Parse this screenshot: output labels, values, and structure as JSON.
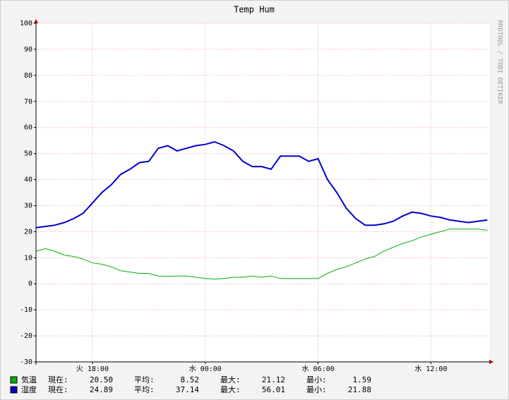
{
  "chart_data": {
    "type": "line",
    "title": "Temp Hum",
    "side_text": "RRDTOOL / TOBI OETIKER",
    "x": [
      15,
      15.5,
      16,
      16.5,
      17,
      17.5,
      18,
      18.5,
      19,
      19.5,
      20,
      20.5,
      21,
      21.5,
      22,
      22.5,
      23,
      23.5,
      24,
      24.5,
      25,
      25.5,
      26,
      26.5,
      27,
      27.5,
      28,
      28.5,
      29,
      29.5,
      30,
      30.5,
      31,
      31.5,
      32,
      32.5,
      33,
      33.5,
      34,
      34.5,
      35,
      35.5,
      36,
      36.5,
      37,
      37.5,
      38,
      38.5,
      39
    ],
    "xlim": [
      15,
      39.1
    ],
    "xticks": [
      {
        "value": 18,
        "label": "火 18:00"
      },
      {
        "value": 24,
        "label": "水 00:00"
      },
      {
        "value": 30,
        "label": "水 06:00"
      },
      {
        "value": 36,
        "label": "水 12:00"
      }
    ],
    "ylim": [
      -30,
      100
    ],
    "yticks": [
      -30,
      -20,
      -10,
      0,
      10,
      20,
      30,
      40,
      50,
      60,
      70,
      80,
      90,
      100
    ],
    "grid": true,
    "stat_labels": [
      "現在:",
      "平均:",
      "最大:",
      "最小:"
    ],
    "series": [
      {
        "name": "気温",
        "color": "#00b000",
        "values": [
          12.5,
          13.5,
          12.5,
          11,
          10.5,
          9.5,
          8,
          7.5,
          6.5,
          5,
          4.5,
          4,
          4,
          3,
          2.8,
          3,
          3,
          2.5,
          2,
          1.8,
          2,
          2.5,
          2.5,
          3,
          2.5,
          3,
          2,
          2,
          2,
          2,
          2,
          4,
          5.5,
          6.5,
          8,
          9.5,
          10.5,
          12.5,
          14,
          15.5,
          16.5,
          18,
          19,
          20,
          21,
          21,
          21,
          21,
          20.5
        ],
        "stats": [
          "20.50",
          "8.52",
          "21.12",
          "1.59"
        ]
      },
      {
        "name": "湿度",
        "color": "#0000cc",
        "values": [
          21.5,
          22,
          22.5,
          23.5,
          25,
          27,
          31,
          35,
          38,
          42,
          44,
          46.5,
          47,
          52,
          53,
          51,
          52,
          53,
          53.5,
          54.5,
          53,
          51,
          47,
          45,
          45,
          44,
          49,
          49,
          49,
          47,
          48,
          40,
          35,
          29,
          25,
          22.5,
          22.5,
          23,
          24,
          26,
          27.5,
          27,
          26,
          25.5,
          24.5,
          24,
          23.5,
          24,
          24.5
        ],
        "stats": [
          "24.89",
          "37.14",
          "56.01",
          "21.88"
        ]
      }
    ]
  }
}
